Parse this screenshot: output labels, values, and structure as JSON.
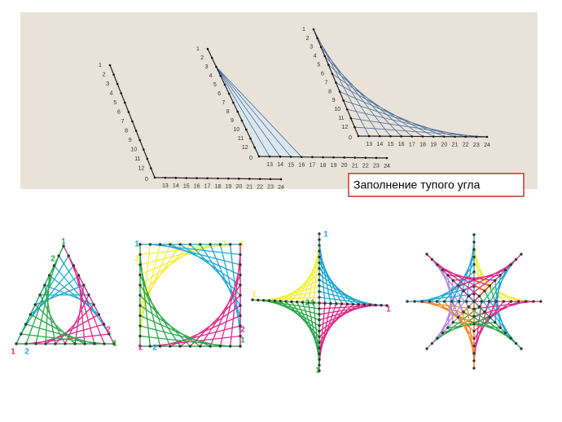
{
  "top_panel": {
    "top_arm_labels": [
      "1",
      "2",
      "3",
      "4",
      "5",
      "6",
      "7",
      "8",
      "9",
      "10",
      "11",
      "12"
    ],
    "vertex_label": "0",
    "bottom_arm_labels": [
      "13",
      "14",
      "15",
      "16",
      "17",
      "18",
      "19",
      "20",
      "21",
      "22",
      "23",
      "24"
    ],
    "caption": "Заполнение тупого угла"
  },
  "figures": [
    {
      "labels": [
        "1",
        "2",
        "1",
        "2",
        "2",
        "1"
      ]
    },
    {
      "labels": [
        "1",
        "2",
        "2",
        "1",
        "1",
        "2",
        "2",
        "1"
      ]
    },
    {
      "labels": [
        "1",
        "1",
        "1",
        "1",
        "24"
      ]
    },
    {
      "labels": []
    }
  ]
}
